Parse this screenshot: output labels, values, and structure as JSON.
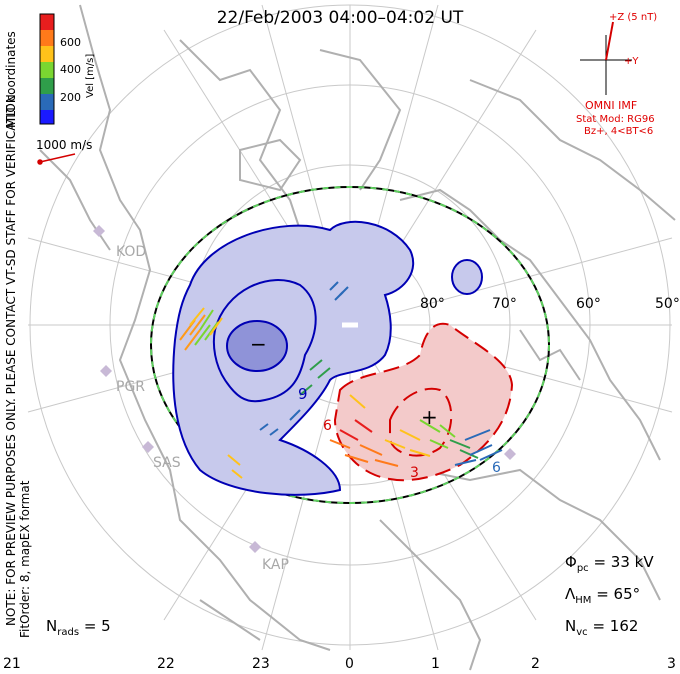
{
  "title": "22/Feb/2003 04:00–04:02 UT",
  "side_notes": {
    "coordinates": "MLT coordinates",
    "verification": "NOTE: FOR PREVIEW PURPOSES ONLY. PLEASE CONTACT VT-SD STAFF FOR VERIFICATION.",
    "fit_order": "FitOrder: 8, mapEX format"
  },
  "velocity_scale": {
    "label": "Vel [m/s]",
    "ticks": [
      "600",
      "400",
      "200"
    ],
    "colors": [
      "#e81e1e",
      "#ff7a1a",
      "#ffc21a",
      "#7ad631",
      "#2f9e4a",
      "#2a6ab8",
      "#1a1aff"
    ],
    "reference_vector": "1000 m/s"
  },
  "imf": {
    "z_label": "+Z (5 nT)",
    "y_label": "+Y",
    "source": "OMNI IMF",
    "stat_model": "Stat Mod: RG96",
    "condition": "Bz+, 4<BT<6"
  },
  "radars": [
    "KOD",
    "PGR",
    "SAS",
    "KAP"
  ],
  "latitude_labels": [
    "80°",
    "70°",
    "60°",
    "50°"
  ],
  "contour_labels": {
    "negative": "9",
    "positive": "6",
    "positive2": "3",
    "positive3": "6"
  },
  "potential_markers": {
    "min": "−",
    "max": "+"
  },
  "stats": {
    "phi_pc_value": "= 33 kV",
    "lambda_hm_value": "= 65°",
    "n_vc_value": "= 162",
    "n_rads_value": "= 5"
  },
  "mlt_ticks": [
    "21",
    "22",
    "23",
    "0",
    "1",
    "2",
    "3"
  ],
  "colors": {
    "negative_fill": "#c7c9ec",
    "negative_core": "#8f93d8",
    "negative_line": "#0000b4",
    "positive_fill": "#f3caca",
    "positive_line": "#d40000",
    "coast": "#b0b0b0",
    "grid": "#c9c9c9",
    "boundary_dash": "#5fd05f"
  }
}
